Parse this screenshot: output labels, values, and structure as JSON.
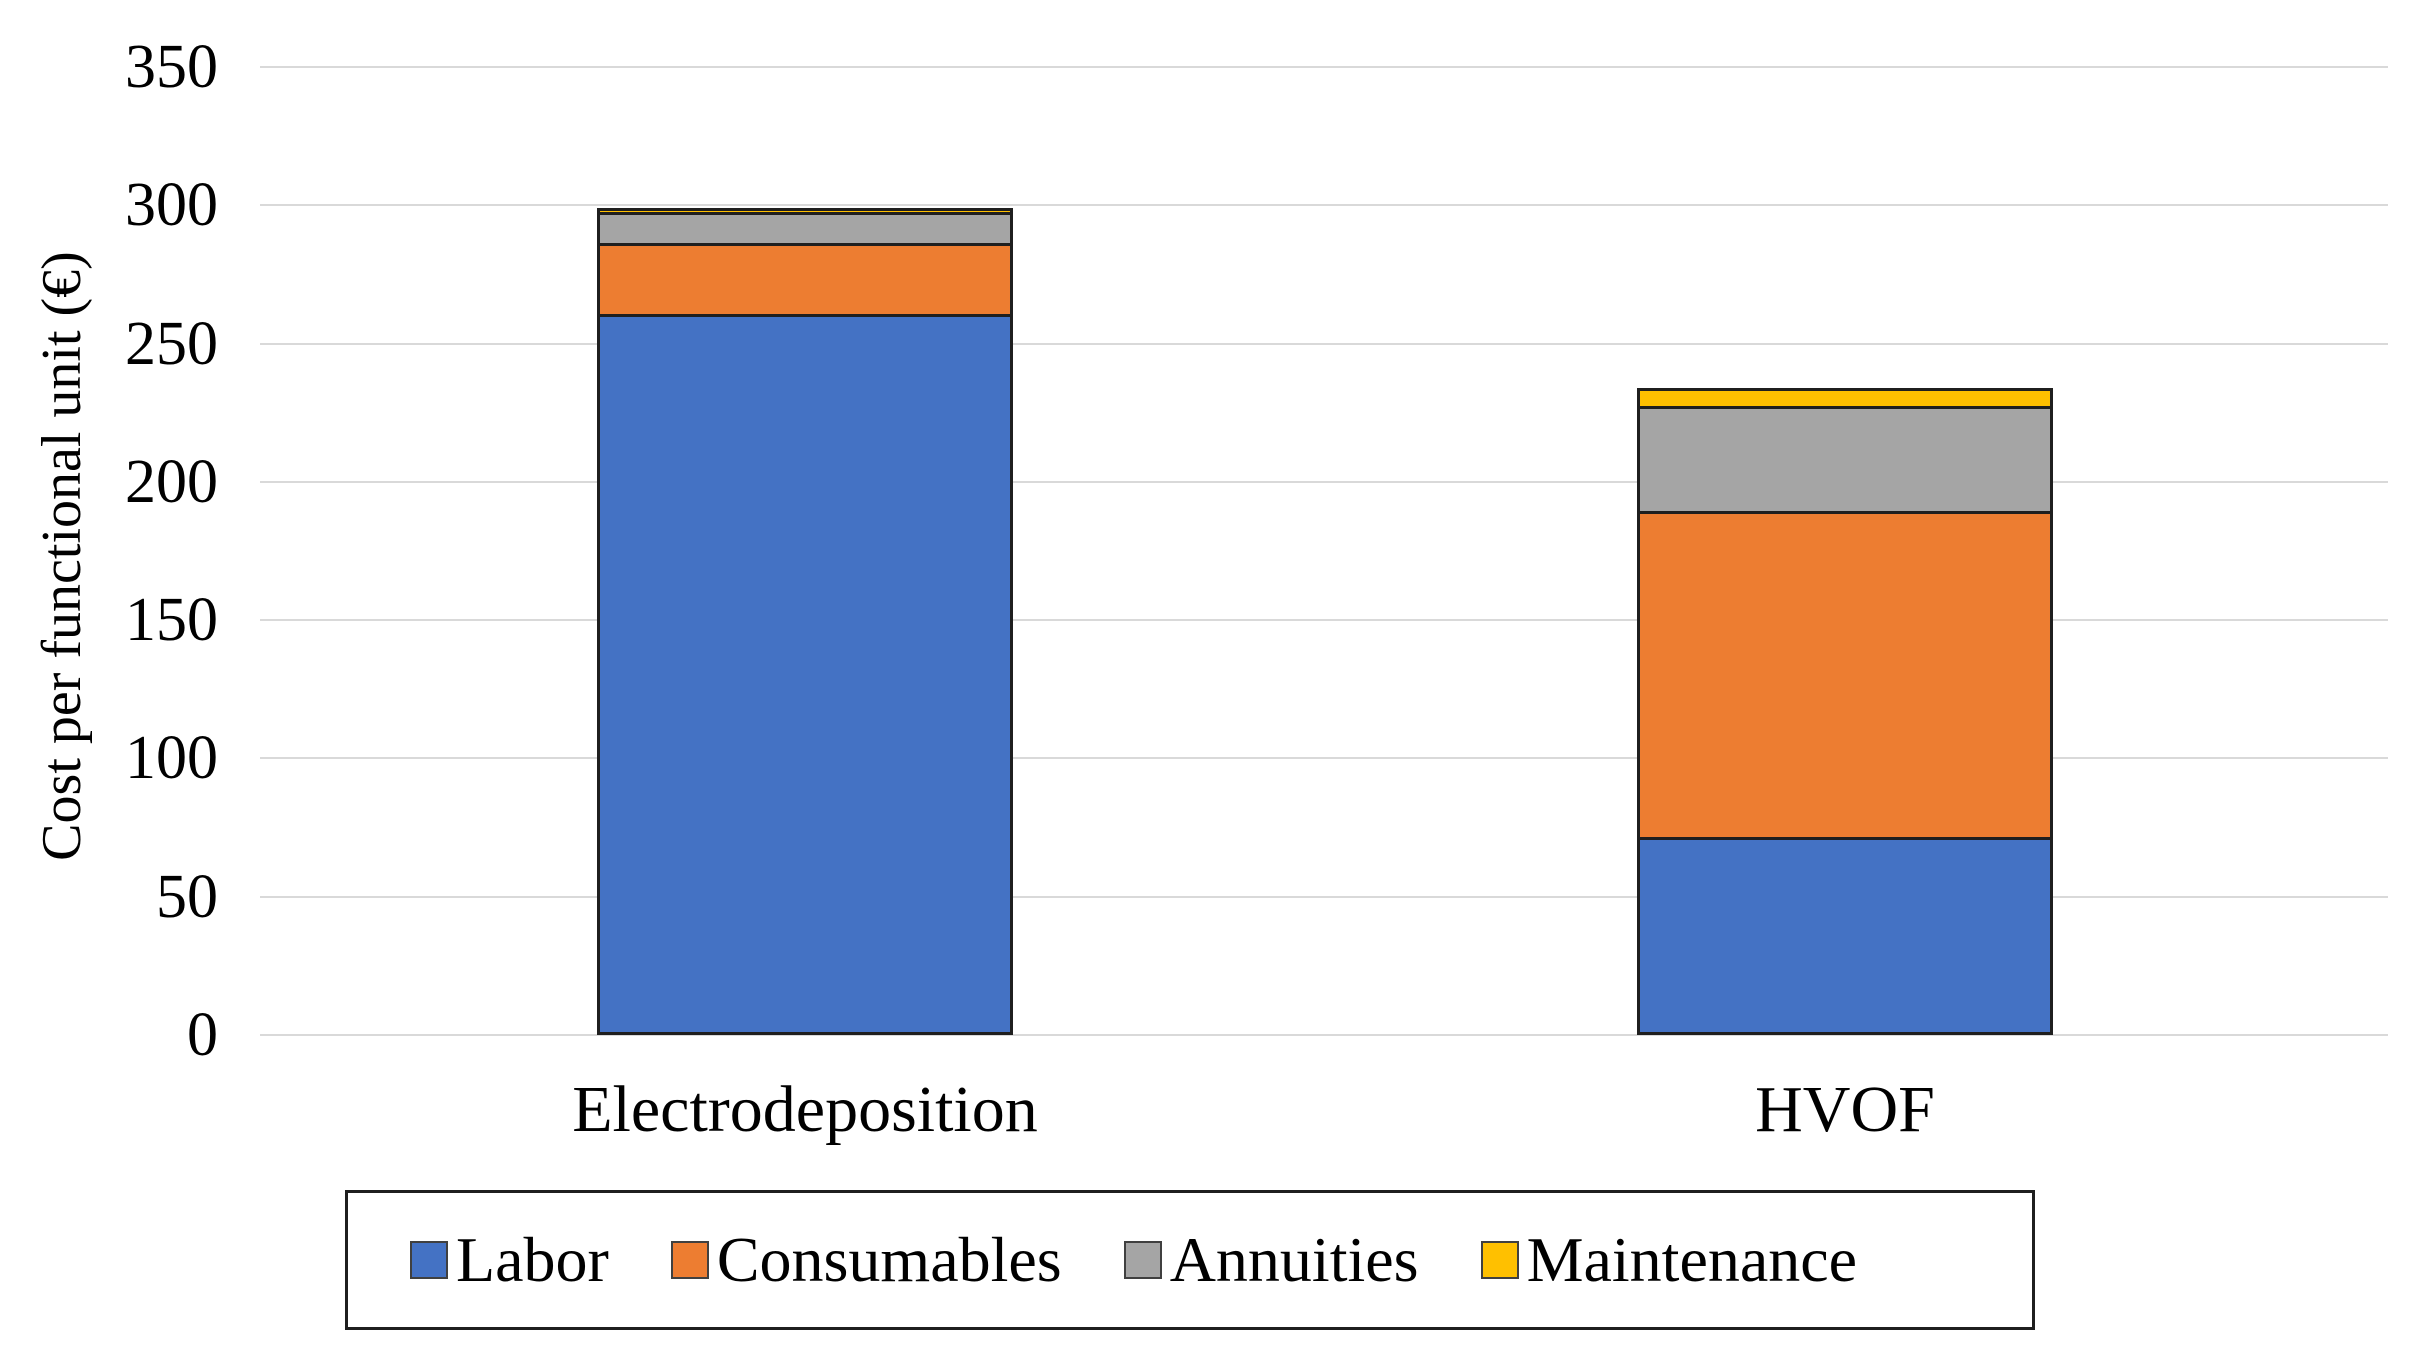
{
  "chart_data": {
    "type": "bar",
    "stacked": true,
    "orientation": "vertical",
    "title": "",
    "xlabel": "",
    "ylabel": "Cost per functional unit (€)",
    "categories": [
      "Electrodeposition",
      "HVOF"
    ],
    "series": [
      {
        "name": "Labor",
        "color": "#4472C4",
        "values": [
          260,
          71
        ]
      },
      {
        "name": "Consumables",
        "color": "#ED7D31",
        "values": [
          26,
          118
        ]
      },
      {
        "name": "Annuities",
        "color": "#A5A5A5",
        "values": [
          11,
          38
        ]
      },
      {
        "name": "Maintenance",
        "color": "#FFC000",
        "values": [
          2,
          7
        ]
      }
    ],
    "totals": [
      299,
      234
    ],
    "ylim": [
      0,
      350
    ],
    "ytick_step": 50,
    "yticks": [
      "0",
      "50",
      "100",
      "150",
      "200",
      "250",
      "300",
      "350"
    ],
    "grid": true,
    "gridline_color": "#d9d9d9",
    "bar_border_color": "#1f1f1f",
    "legend_position": "bottom"
  }
}
